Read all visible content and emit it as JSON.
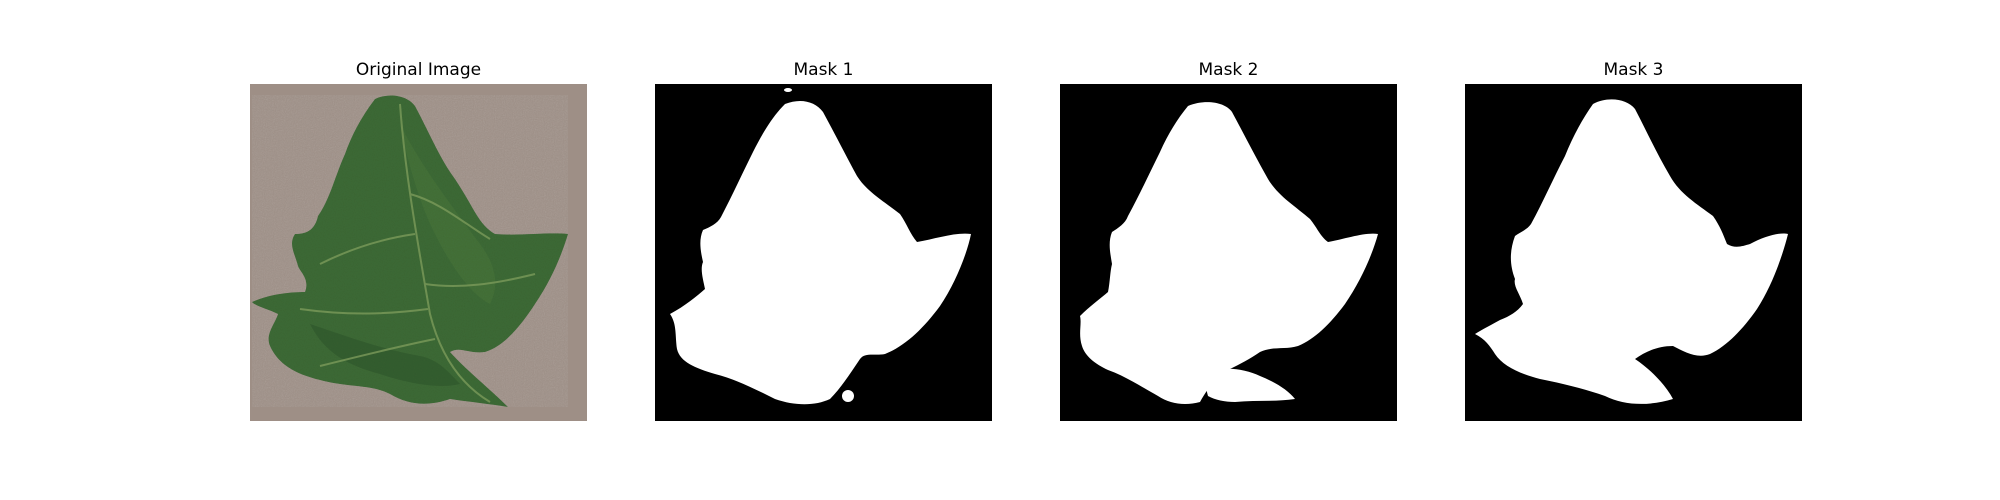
{
  "figure": {
    "panels": [
      {
        "title": "Original Image",
        "kind": "photo"
      },
      {
        "title": "Mask 1",
        "kind": "mask"
      },
      {
        "title": "Mask 2",
        "kind": "mask"
      },
      {
        "title": "Mask 3",
        "kind": "mask"
      }
    ]
  },
  "colors": {
    "background": "#ffffff",
    "mask_background": "#000000",
    "mask_foreground": "#ffffff",
    "photo_background": "#9e8f86",
    "leaf_green": "#3d6a35",
    "leaf_dark": "#2b4f2a",
    "leaf_vein": "#7b9a5a"
  }
}
